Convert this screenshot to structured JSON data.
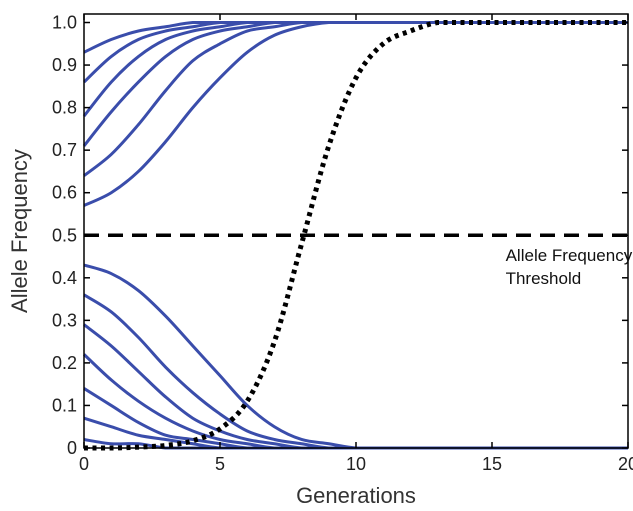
{
  "chart_data": {
    "type": "line",
    "xlabel": "Generations",
    "ylabel": "Allele Frequency",
    "xlim": [
      0,
      20
    ],
    "ylim": [
      0,
      1.02
    ],
    "xticks": [
      0,
      5,
      10,
      15,
      20
    ],
    "yticks": [
      0,
      0.1,
      0.2,
      0.3,
      0.4,
      0.5,
      0.6,
      0.7,
      0.8,
      0.9,
      1.0
    ],
    "ytick_labels": [
      "0",
      "0.1",
      "0.2",
      "0.3",
      "0.4",
      "0.5",
      "0.6",
      "0.7",
      "0.8",
      "0.9",
      "1.0"
    ],
    "grid": false,
    "x": [
      0,
      1,
      2,
      3,
      4,
      5,
      6,
      7,
      8,
      9,
      10,
      11,
      12,
      13,
      14,
      15,
      16,
      17,
      18,
      19,
      20
    ],
    "series": [
      {
        "style": "solid",
        "values": [
          0.93,
          0.96,
          0.98,
          0.99,
          1.0,
          1.0,
          1.0,
          1.0,
          1.0,
          1.0,
          1.0,
          1.0,
          1.0,
          1.0,
          1.0,
          1.0,
          1.0,
          1.0,
          1.0,
          1.0,
          1.0
        ]
      },
      {
        "style": "solid",
        "values": [
          0.86,
          0.92,
          0.96,
          0.98,
          0.99,
          1.0,
          1.0,
          1.0,
          1.0,
          1.0,
          1.0,
          1.0,
          1.0,
          1.0,
          1.0,
          1.0,
          1.0,
          1.0,
          1.0,
          1.0,
          1.0
        ]
      },
      {
        "style": "solid",
        "values": [
          0.78,
          0.86,
          0.92,
          0.96,
          0.98,
          0.99,
          1.0,
          1.0,
          1.0,
          1.0,
          1.0,
          1.0,
          1.0,
          1.0,
          1.0,
          1.0,
          1.0,
          1.0,
          1.0,
          1.0,
          1.0
        ]
      },
      {
        "style": "solid",
        "values": [
          0.71,
          0.79,
          0.86,
          0.92,
          0.96,
          0.98,
          0.99,
          1.0,
          1.0,
          1.0,
          1.0,
          1.0,
          1.0,
          1.0,
          1.0,
          1.0,
          1.0,
          1.0,
          1.0,
          1.0,
          1.0
        ]
      },
      {
        "style": "solid",
        "values": [
          0.64,
          0.69,
          0.76,
          0.84,
          0.91,
          0.95,
          0.98,
          0.99,
          1.0,
          1.0,
          1.0,
          1.0,
          1.0,
          1.0,
          1.0,
          1.0,
          1.0,
          1.0,
          1.0,
          1.0,
          1.0
        ]
      },
      {
        "style": "solid",
        "values": [
          0.57,
          0.6,
          0.65,
          0.72,
          0.8,
          0.87,
          0.93,
          0.97,
          0.99,
          1.0,
          1.0,
          1.0,
          1.0,
          1.0,
          1.0,
          1.0,
          1.0,
          1.0,
          1.0,
          1.0,
          1.0
        ]
      },
      {
        "style": "solid",
        "values": [
          0.43,
          0.41,
          0.37,
          0.31,
          0.24,
          0.17,
          0.1,
          0.05,
          0.02,
          0.01,
          0.0,
          0.0,
          0.0,
          0.0,
          0.0,
          0.0,
          0.0,
          0.0,
          0.0,
          0.0,
          0.0
        ]
      },
      {
        "style": "solid",
        "values": [
          0.36,
          0.32,
          0.26,
          0.19,
          0.13,
          0.08,
          0.04,
          0.02,
          0.01,
          0.0,
          0.0,
          0.0,
          0.0,
          0.0,
          0.0,
          0.0,
          0.0,
          0.0,
          0.0,
          0.0,
          0.0
        ]
      },
      {
        "style": "solid",
        "values": [
          0.29,
          0.24,
          0.18,
          0.12,
          0.07,
          0.04,
          0.02,
          0.01,
          0.0,
          0.0,
          0.0,
          0.0,
          0.0,
          0.0,
          0.0,
          0.0,
          0.0,
          0.0,
          0.0,
          0.0,
          0.0
        ]
      },
      {
        "style": "solid",
        "values": [
          0.22,
          0.16,
          0.11,
          0.07,
          0.04,
          0.02,
          0.01,
          0.0,
          0.0,
          0.0,
          0.0,
          0.0,
          0.0,
          0.0,
          0.0,
          0.0,
          0.0,
          0.0,
          0.0,
          0.0,
          0.0
        ]
      },
      {
        "style": "solid",
        "values": [
          0.14,
          0.1,
          0.06,
          0.03,
          0.02,
          0.01,
          0.0,
          0.0,
          0.0,
          0.0,
          0.0,
          0.0,
          0.0,
          0.0,
          0.0,
          0.0,
          0.0,
          0.0,
          0.0,
          0.0,
          0.0
        ]
      },
      {
        "style": "solid",
        "values": [
          0.07,
          0.05,
          0.03,
          0.02,
          0.01,
          0.0,
          0.0,
          0.0,
          0.0,
          0.0,
          0.0,
          0.0,
          0.0,
          0.0,
          0.0,
          0.0,
          0.0,
          0.0,
          0.0,
          0.0,
          0.0
        ]
      },
      {
        "style": "solid",
        "values": [
          0.02,
          0.01,
          0.01,
          0.0,
          0.0,
          0.0,
          0.0,
          0.0,
          0.0,
          0.0,
          0.0,
          0.0,
          0.0,
          0.0,
          0.0,
          0.0,
          0.0,
          0.0,
          0.0,
          0.0,
          0.0
        ]
      },
      {
        "style": "dotted",
        "values": [
          0.0,
          0.0,
          0.002,
          0.006,
          0.017,
          0.045,
          0.11,
          0.25,
          0.48,
          0.71,
          0.87,
          0.95,
          0.98,
          1.0,
          1.0,
          1.0,
          1.0,
          1.0,
          1.0,
          1.0,
          1.0
        ]
      }
    ],
    "threshold": {
      "y": 0.5,
      "style": "dashed"
    },
    "annotation": {
      "lines": [
        "Allele Frequency",
        "Threshold"
      ],
      "x": 15.5,
      "y": 0.44
    },
    "colors": {
      "solid": "#3a4dab",
      "dotted": "#000000",
      "threshold": "#000000",
      "axis": "#000000"
    }
  }
}
